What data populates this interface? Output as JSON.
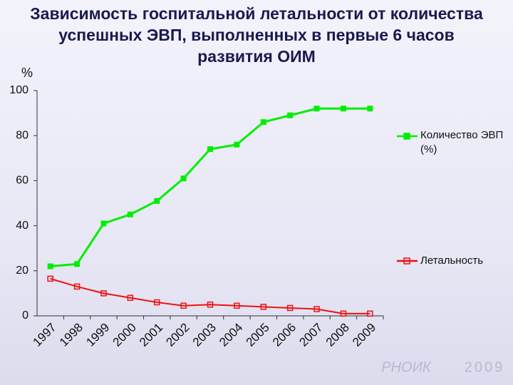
{
  "chart_data": {
    "type": "line",
    "title": "Зависимость госпитальной летальности от количества успешных ЭВП, выполненных в первые 6 часов развития ОИМ",
    "y_label": "%",
    "categories": [
      "1997",
      "1998",
      "1999",
      "2000",
      "2001",
      "2002",
      "2003",
      "2004",
      "2005",
      "2006",
      "2007",
      "2008",
      "2009"
    ],
    "series": [
      {
        "name": "Количество ЭВП (%)",
        "color": "#00ee00",
        "values": [
          22,
          23,
          41,
          45,
          51,
          61,
          74,
          76,
          86,
          89,
          92,
          92,
          92
        ]
      },
      {
        "name": "Летальность",
        "color": "#ee1111",
        "values": [
          16.5,
          13,
          10,
          8,
          6,
          4.5,
          5,
          4.5,
          4,
          3.5,
          3,
          1,
          1
        ]
      }
    ],
    "ylim": [
      0,
      100
    ],
    "yticks": [
      0,
      20,
      40,
      60,
      80,
      100
    ],
    "legend": "right",
    "logo": {
      "name": "РНОИК",
      "year": "2009"
    }
  }
}
